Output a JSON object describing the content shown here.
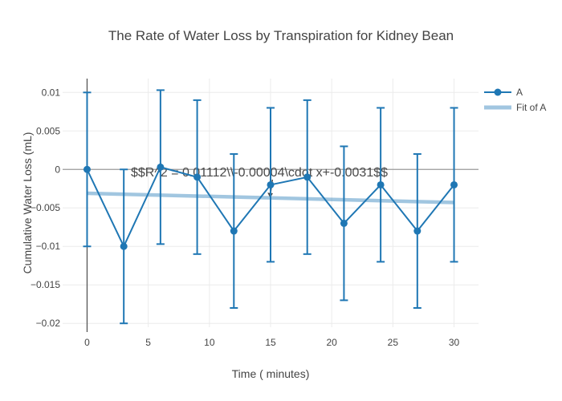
{
  "chart_data": {
    "type": "line",
    "title": "The Rate of Water Loss by Transpiration for Kidney Bean",
    "xlabel": "Time ( minutes)",
    "ylabel": "Cumulative Water Loss (mL)",
    "x": [
      0,
      3,
      6,
      9,
      12,
      15,
      18,
      21,
      24,
      27,
      30
    ],
    "series": [
      {
        "name": "A",
        "mode": "lines+markers",
        "values": [
          0,
          -0.01,
          0.0003,
          -0.001,
          -0.008,
          -0.002,
          -0.001,
          -0.007,
          -0.002,
          -0.008,
          -0.002
        ],
        "error_y": 0.01,
        "color": "#1f77b4"
      },
      {
        "name": "Fit of A",
        "mode": "lines",
        "fit": {
          "slope": -4e-05,
          "intercept": -0.0031
        },
        "x_range": [
          0,
          30
        ],
        "color": "rgba(31,119,180,0.42)"
      }
    ],
    "annotation": {
      "text": "$$R^2 = 0.01112\\\\-0.00004\\cdot x+-0.0031$$",
      "arrow_target": {
        "x": 15,
        "y": -0.0037
      }
    },
    "xlim": [
      -2,
      32
    ],
    "ylim": [
      -0.0205,
      0.0118
    ],
    "xticks": {
      "values": [
        0,
        5,
        10,
        15,
        20,
        25,
        30
      ],
      "labels": [
        "0",
        "5",
        "10",
        "15",
        "20",
        "25",
        "30"
      ]
    },
    "yticks": {
      "values": [
        0.01,
        0.005,
        0,
        -0.005,
        -0.01,
        -0.015,
        -0.02
      ],
      "labels": [
        "0.01",
        "0.005",
        "0",
        "−0.005",
        "−0.01",
        "−0.015",
        "−0.02"
      ]
    },
    "grid": true,
    "legend": {
      "position": "top-right",
      "entries": [
        "A",
        "Fit of A"
      ]
    },
    "colors": {
      "grid": "#ebebeb",
      "zeroline_x": "#555555",
      "zeroline_y": "#999999",
      "text": "#444444",
      "annotation": "#4a4a4a"
    }
  }
}
